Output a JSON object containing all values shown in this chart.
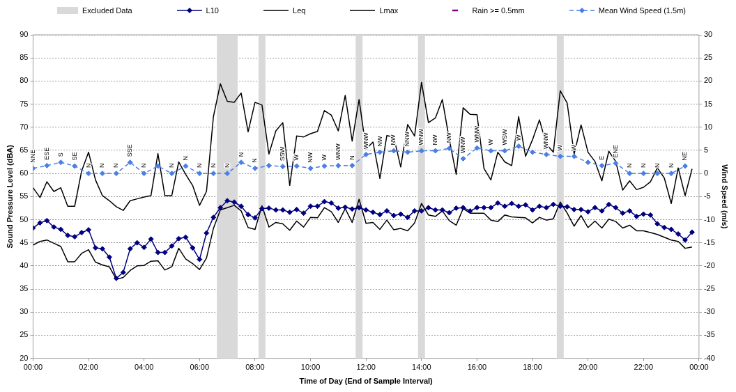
{
  "chart_data": {
    "type": "line",
    "xlabel": "Time of Day (End of Sample Interval)",
    "ylabel": "Sound Pressure Level (dBA)",
    "y2label": "Wind Speed (m/s)",
    "x": [
      0,
      0.25,
      0.5,
      0.75,
      1,
      1.25,
      1.5,
      1.75,
      2,
      2.25,
      2.5,
      2.75,
      3,
      3.25,
      3.5,
      3.75,
      4,
      4.25,
      4.5,
      4.75,
      5,
      5.25,
      5.5,
      5.75,
      6,
      6.25,
      6.5,
      6.75,
      7,
      7.25,
      7.5,
      7.75,
      8,
      8.25,
      8.5,
      8.75,
      9,
      9.25,
      9.5,
      9.75,
      10,
      10.25,
      10.5,
      10.75,
      11,
      11.25,
      11.5,
      11.75,
      12,
      12.25,
      12.5,
      12.75,
      13,
      13.25,
      13.5,
      13.75,
      14,
      14.25,
      14.5,
      14.75,
      15,
      15.25,
      15.5,
      15.75,
      16,
      16.25,
      16.5,
      16.75,
      17,
      17.25,
      17.5,
      17.75,
      18,
      18.25,
      18.5,
      18.75,
      19,
      19.25,
      19.5,
      19.75,
      20,
      20.25,
      20.5,
      20.75,
      21,
      21.25,
      21.5,
      21.75,
      22,
      22.25,
      22.5,
      22.75,
      23,
      23.25,
      23.5,
      23.75
    ],
    "xlim": [
      0,
      24
    ],
    "xticks": [
      {
        "value": 0,
        "label": "00:00"
      },
      {
        "value": 2,
        "label": "02:00"
      },
      {
        "value": 4,
        "label": "04:00"
      },
      {
        "value": 6,
        "label": "06:00"
      },
      {
        "value": 8,
        "label": "08:00"
      },
      {
        "value": 10,
        "label": "10:00"
      },
      {
        "value": 12,
        "label": "12:00"
      },
      {
        "value": 14,
        "label": "14:00"
      },
      {
        "value": 16,
        "label": "16:00"
      },
      {
        "value": 18,
        "label": "18:00"
      },
      {
        "value": 20,
        "label": "20:00"
      },
      {
        "value": 22,
        "label": "22:00"
      },
      {
        "value": 24,
        "label": "00:00"
      }
    ],
    "ylim": [
      20,
      90
    ],
    "yticks": [
      20,
      25,
      30,
      35,
      40,
      45,
      50,
      55,
      60,
      65,
      70,
      75,
      80,
      85,
      90
    ],
    "y2lim": [
      -40,
      30
    ],
    "y2ticks": [
      -40,
      -35,
      -30,
      -25,
      -20,
      -15,
      -10,
      -5,
      0,
      5,
      10,
      15,
      20,
      25,
      30
    ],
    "grid": "y",
    "legend": "top",
    "bands": [
      {
        "axis": "x",
        "from": 6.625,
        "to": 7.375,
        "label": "Excluded Data",
        "color": "#d9d9d9"
      },
      {
        "axis": "x",
        "from": 8.125,
        "to": 8.375,
        "color": "#d9d9d9"
      },
      {
        "axis": "x",
        "from": 11.625,
        "to": 11.875,
        "color": "#d9d9d9"
      },
      {
        "axis": "x",
        "from": 13.875,
        "to": 14.125,
        "color": "#d9d9d9"
      },
      {
        "axis": "x",
        "from": 18.875,
        "to": 19.125,
        "color": "#d9d9d9"
      }
    ],
    "series": [
      {
        "name": "L10",
        "color": "#000080",
        "marker": "diamond",
        "values": [
          48.2,
          49.3,
          49.8,
          48.4,
          47.9,
          46.6,
          46.3,
          47.2,
          47.8,
          43.9,
          43.7,
          41.9,
          37.3,
          38.6,
          43.7,
          45.0,
          44.0,
          45.8,
          42.9,
          42.9,
          44.3,
          45.9,
          46.2,
          43.9,
          41.4,
          47.1,
          50.5,
          52.6,
          54.1,
          53.8,
          52.9,
          51.1,
          50.4,
          52.4,
          52.5,
          52.1,
          52.1,
          51.6,
          52.2,
          51.4,
          52.9,
          52.9,
          53.9,
          53.6,
          52.5,
          52.7,
          52.3,
          52.6,
          52.1,
          51.6,
          51.1,
          51.9,
          50.9,
          51.2,
          50.5,
          51.9,
          51.9,
          52.6,
          52.1,
          52.1,
          51.5,
          52.5,
          52.6,
          51.9,
          52.6,
          52.6,
          52.6,
          53.6,
          52.9,
          53.5,
          52.9,
          53.2,
          52.1,
          52.9,
          52.6,
          53.3,
          52.9,
          52.8,
          52.2,
          52.2,
          51.7,
          52.6,
          51.9,
          53.3,
          52.6,
          51.4,
          51.9,
          50.7,
          51.2,
          51.0,
          49.1,
          48.3,
          47.9,
          46.9,
          45.6,
          47.3
        ]
      },
      {
        "name": "Leq",
        "color": "#000000",
        "marker": "none",
        "values": [
          44.5,
          45.3,
          45.6,
          44.9,
          44.2,
          40.9,
          40.9,
          42.7,
          43.5,
          40.8,
          40.2,
          39.8,
          37.1,
          37.5,
          39.0,
          40.0,
          40.1,
          41.0,
          41.1,
          39.1,
          39.8,
          43.8,
          41.5,
          40.5,
          39.2,
          41.7,
          48.1,
          52.1,
          52.6,
          53.1,
          51.9,
          48.3,
          47.9,
          53.0,
          48.4,
          49.4,
          49.1,
          47.7,
          49.7,
          48.4,
          50.5,
          50.4,
          52.6,
          51.7,
          49.4,
          52.4,
          49.4,
          54.4,
          49.2,
          49.4,
          47.9,
          49.9,
          47.8,
          48.1,
          47.6,
          49.3,
          53.5,
          51.0,
          50.7,
          51.9,
          49.8,
          48.8,
          52.4,
          51.4,
          51.4,
          51.4,
          49.9,
          49.6,
          51.0,
          50.6,
          50.5,
          50.4,
          49.3,
          50.5,
          49.9,
          50.2,
          53.8,
          51.4,
          48.6,
          50.9,
          48.3,
          49.7,
          48.2,
          50.1,
          49.6,
          48.2,
          48.8,
          47.6,
          47.6,
          47.2,
          46.8,
          46.2,
          45.6,
          45.3,
          43.8,
          44.1
        ]
      },
      {
        "name": "Lmax",
        "color": "#000000",
        "marker": "none",
        "values": [
          56.9,
          54.8,
          58.2,
          56.1,
          56.9,
          52.9,
          52.9,
          60.5,
          64.6,
          58.6,
          55.2,
          54.1,
          52.8,
          52.0,
          54.1,
          54.5,
          54.9,
          55.2,
          64.3,
          55.2,
          55.2,
          62.5,
          59.8,
          57.4,
          53.1,
          56.1,
          72.3,
          79.4,
          75.6,
          75.4,
          77.4,
          69.0,
          75.4,
          74.8,
          64.2,
          69.2,
          71.0,
          57.4,
          68.1,
          67.9,
          68.6,
          69.1,
          73.6,
          72.6,
          69.2,
          76.9,
          67.0,
          76.0,
          65.3,
          66.8,
          58.9,
          68.2,
          67.9,
          61.4,
          70.6,
          68.1,
          79.7,
          71.0,
          72.0,
          76.0,
          67.4,
          59.8,
          74.2,
          72.8,
          72.7,
          61.1,
          58.6,
          64.6,
          62.5,
          61.7,
          72.3,
          63.7,
          67.3,
          71.6,
          66.3,
          64.6,
          77.9,
          75.2,
          64.2,
          70.5,
          64.6,
          62.6,
          58.4,
          64.8,
          62.6,
          56.4,
          58.4,
          56.5,
          57.0,
          58.2,
          61.2,
          59.0,
          53.5,
          61.2,
          55.2,
          61.0
        ]
      },
      {
        "name": "Rain >= 0.5mm",
        "type": "scatter",
        "color": "#800080",
        "values": [
          null,
          null,
          null,
          null,
          null,
          null,
          null,
          null,
          null,
          null,
          null,
          null,
          null,
          null,
          null,
          null,
          null,
          null,
          null,
          null,
          null,
          null,
          null,
          null,
          null,
          null,
          null,
          null,
          null,
          null,
          null,
          null,
          null,
          null,
          null,
          null,
          null,
          null,
          null,
          null,
          null,
          null,
          null,
          null,
          null,
          null,
          null,
          null,
          null,
          null,
          null,
          null,
          null,
          null,
          null,
          null,
          null,
          null,
          null,
          null,
          null,
          null,
          null,
          null,
          null,
          null,
          null,
          null,
          null,
          null,
          null,
          null,
          null,
          null,
          null,
          null,
          null,
          null,
          null,
          null,
          null,
          null,
          null,
          null,
          null,
          null,
          null,
          null,
          null,
          null,
          null,
          null,
          null,
          null,
          null,
          null
        ]
      },
      {
        "name": "Mean Wind Speed (1.5m)",
        "color": "#4a7fe6",
        "marker": "diamond",
        "line_style": "dashed",
        "axis": "y2",
        "x": [
          0,
          0.5,
          1,
          1.5,
          2,
          2.5,
          3,
          3.5,
          4,
          4.5,
          5,
          5.5,
          6,
          6.5,
          7,
          7.5,
          8,
          8.5,
          9,
          9.5,
          10,
          10.5,
          11,
          11.5,
          12,
          12.5,
          13,
          13.5,
          14,
          14.5,
          15,
          15.5,
          16,
          16.5,
          17,
          17.5,
          18,
          18.5,
          19,
          19.5,
          20,
          20.5,
          21,
          21.5,
          22,
          22.5,
          23,
          23.5
        ],
        "values": [
          1.1,
          1.7,
          2.4,
          1.6,
          0,
          0,
          0,
          2.4,
          0,
          1.6,
          0,
          1.6,
          0,
          0,
          0,
          2.4,
          1.1,
          1.7,
          1.5,
          1.6,
          1.1,
          1.6,
          1.7,
          1.7,
          4.1,
          4.6,
          4.9,
          4.6,
          4.9,
          4.9,
          5.4,
          3.2,
          5.5,
          4.9,
          4.9,
          5.9,
          4.6,
          4.1,
          3.7,
          3.7,
          2.4,
          1.7,
          2.2,
          0,
          0,
          0,
          0,
          1.6
        ],
        "value_labels": [
          "NNE",
          "ESE",
          "S",
          "SE",
          "N",
          "N",
          "N",
          "SSE",
          "N",
          null,
          "N",
          "N",
          "N",
          "N",
          "N",
          "N",
          "N",
          null,
          "SSW",
          "W",
          "NW",
          "W",
          "WNW",
          "N",
          "WNW",
          "NW",
          "NW",
          "NNW",
          "WNW",
          "NW",
          "NW",
          "WNW",
          "WNW",
          "W",
          "WSW",
          "W",
          null,
          "WNW",
          "W",
          "W",
          null,
          "E",
          "ENE",
          "N",
          "N",
          "N",
          "N",
          "NE"
        ]
      }
    ]
  }
}
